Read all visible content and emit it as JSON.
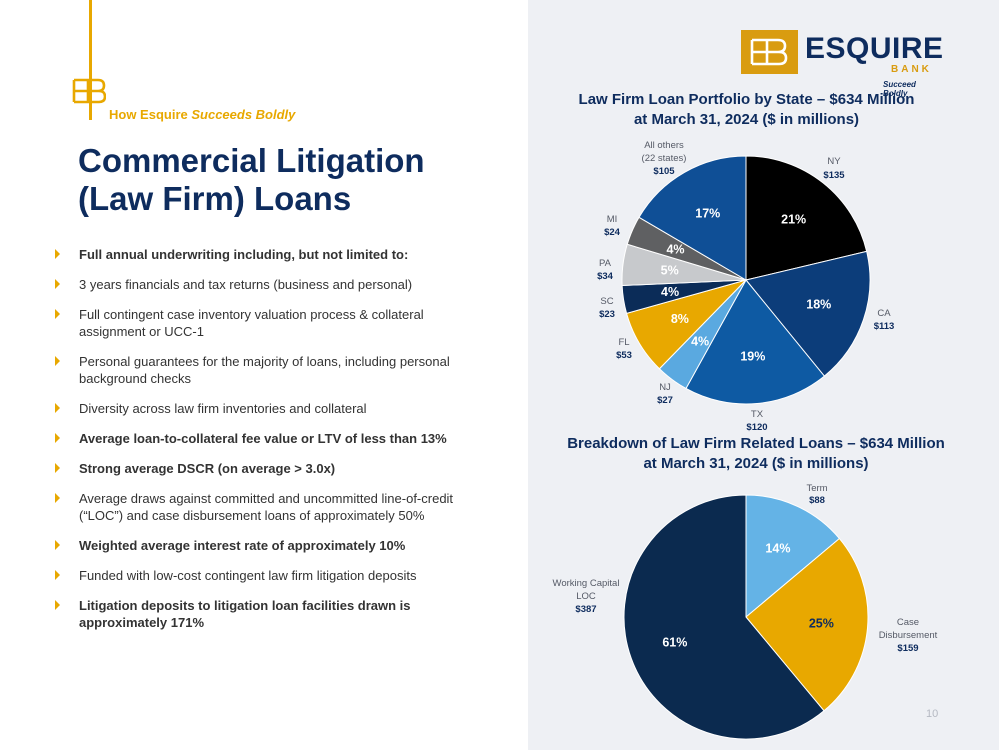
{
  "slide": {
    "tagline_prefix": "How Esquire ",
    "tagline_italic": "Succeeds Boldly",
    "title_line1": "Commercial Litigation",
    "title_line2": "(Law Firm) Loans",
    "page_number": "10",
    "accent_color": "#e8a800",
    "navy_color": "#0e2c5e"
  },
  "logo": {
    "name": "ESQUIRE",
    "bank": "BANK",
    "slogan": "Succeed Boldly"
  },
  "bullets": [
    {
      "text": "Full annual underwriting including, but not limited to:",
      "bold": true
    },
    {
      "text": "3 years financials and tax returns (business and personal)",
      "bold": false
    },
    {
      "text": "Full contingent case inventory valuation process & collateral assignment or UCC-1",
      "bold": false
    },
    {
      "text": "Personal guarantees for the majority of loans, including personal background checks",
      "bold": false
    },
    {
      "text": "Diversity across law firm inventories and collateral",
      "bold": false
    },
    {
      "text": "Average loan-to-collateral fee value or LTV of less than 13%",
      "bold": true
    },
    {
      "text": "Strong average DSCR (on average > 3.0x)",
      "bold": true
    },
    {
      "text": "Average draws against committed and uncommitted line-of-credit (“LOC”) and case disbursement loans of approximately 50%",
      "bold": false
    },
    {
      "text": "Weighted average interest rate of approximately 10%",
      "bold": true
    },
    {
      "text": "Funded with low-cost contingent law firm litigation deposits",
      "bold": false
    },
    {
      "text": "Litigation deposits to litigation loan facilities drawn is approximately 171%",
      "bold": true
    }
  ],
  "chart_data": [
    {
      "type": "pie",
      "title_line1": "Law Firm Loan Portfolio by State – $634 Million",
      "title_line2": "at March 31, 2024 ($ in millions)",
      "slices": [
        {
          "name": "NY",
          "value": 135,
          "value_label": "$135",
          "percent_label": "21%",
          "color": "#000000",
          "text_color": "#ffffff"
        },
        {
          "name": "CA",
          "value": 113,
          "value_label": "$113",
          "percent_label": "18%",
          "color": "#0c3d7a",
          "text_color": "#ffffff"
        },
        {
          "name": "TX",
          "value": 120,
          "value_label": "$120",
          "percent_label": "19%",
          "color": "#0e5aa3",
          "text_color": "#ffffff"
        },
        {
          "name": "NJ",
          "value": 27,
          "value_label": "$27",
          "percent_label": "4%",
          "color": "#5aa9e0",
          "text_color": "#ffffff"
        },
        {
          "name": "FL",
          "value": 53,
          "value_label": "$53",
          "percent_label": "8%",
          "color": "#e8a800",
          "text_color": "#ffffff"
        },
        {
          "name": "SC",
          "value": 23,
          "value_label": "$23",
          "percent_label": "4%",
          "color": "#0b2c58",
          "text_color": "#ffffff"
        },
        {
          "name": "PA",
          "value": 34,
          "value_label": "$34",
          "percent_label": "5%",
          "color": "#c7c9cc",
          "text_color": "#ffffff"
        },
        {
          "name": "MI",
          "value": 24,
          "value_label": "$24",
          "percent_label": "4%",
          "color": "#5f6062",
          "text_color": "#ffffff"
        },
        {
          "name": "All others (22 states)",
          "value": 105,
          "value_label": "$105",
          "percent_label": "17%",
          "color": "#0f4f96",
          "text_color": "#ffffff"
        }
      ]
    },
    {
      "type": "pie",
      "title_line1": "Breakdown of Law Firm Related Loans – $634 Million",
      "title_line2": "at March 31, 2024 ($ in millions)",
      "slices": [
        {
          "name": "Term",
          "value": 88,
          "value_label": "$88",
          "percent_label": "14%",
          "color": "#64b3e6",
          "text_color": "#ffffff"
        },
        {
          "name": "Case Disbursement",
          "value": 159,
          "value_label": "$159",
          "percent_label": "25%",
          "color": "#e8a800",
          "text_color": "#0e2c5e"
        },
        {
          "name": "Working Capital LOC",
          "value": 387,
          "value_label": "$387",
          "percent_label": "61%",
          "color": "#0b2a4f",
          "text_color": "#ffffff"
        }
      ]
    }
  ]
}
